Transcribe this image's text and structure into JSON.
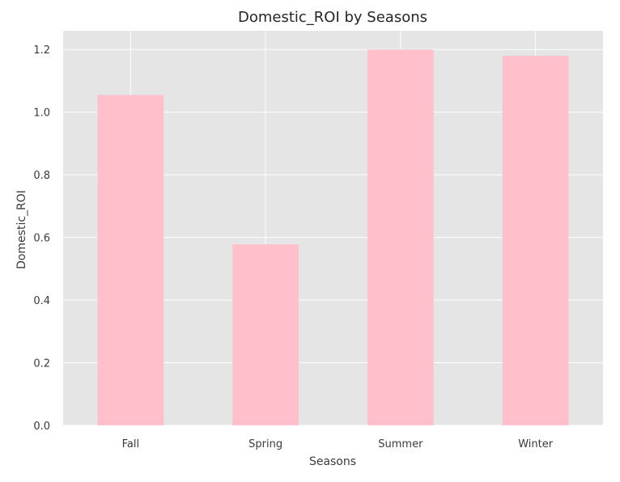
{
  "colors": {
    "plot_background": "#e5e5e5",
    "grid": "#ffffff",
    "bar": "#ffbfcb",
    "text": "#262626"
  },
  "chart_data": {
    "type": "bar",
    "title": "Domestic_ROI by Seasons",
    "xlabel": "Seasons",
    "ylabel": "Domestic_ROI",
    "categories": [
      "Fall",
      "Spring",
      "Summer",
      "Winter"
    ],
    "values": [
      1.055,
      0.578,
      1.2,
      1.18
    ],
    "ylim": [
      0,
      1.26
    ],
    "yticks": [
      0.0,
      0.2,
      0.4,
      0.6,
      0.8,
      1.0,
      1.2
    ],
    "ytick_labels": [
      "0.0",
      "0.2",
      "0.4",
      "0.6",
      "0.8",
      "1.0",
      "1.2"
    ],
    "grid": true,
    "legend": "none"
  }
}
